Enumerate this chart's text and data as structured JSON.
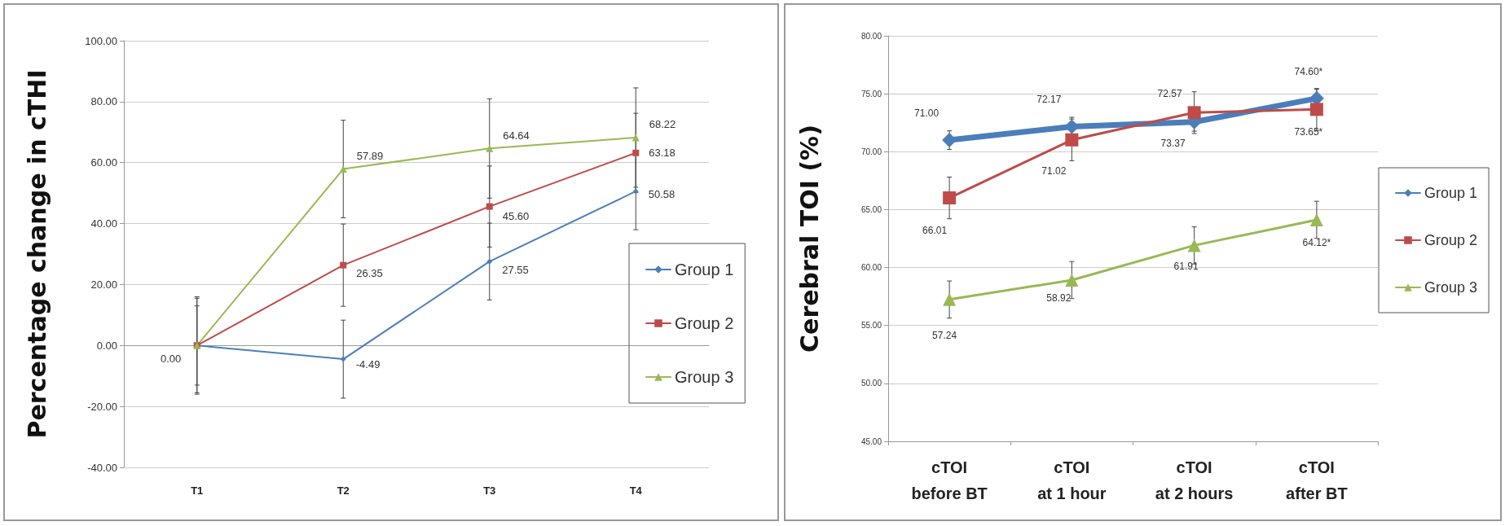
{
  "chart_data": [
    {
      "type": "line",
      "ylabel": "Percentage change in cTHI",
      "categories": [
        "T1",
        "T2",
        "T3",
        "T4"
      ],
      "series": [
        {
          "name": "Group 1",
          "color": "#4a7ebb",
          "marker": "diamond",
          "values": [
            0.0,
            -4.49,
            27.55,
            50.58
          ],
          "errors": [
            15.5,
            12.8,
            12.6,
            12.6
          ],
          "value_labels": [
            "0.00",
            "-4.49",
            "27.55",
            "50.58"
          ]
        },
        {
          "name": "Group 2",
          "color": "#be4b48",
          "marker": "square",
          "values": [
            0,
            26.35,
            45.6,
            63.18
          ],
          "errors": [
            13,
            13.5,
            13.3,
            13
          ],
          "value_labels": [
            null,
            "26.35",
            "45.60",
            "63.18"
          ]
        },
        {
          "name": "Group 3",
          "color": "#98b954",
          "marker": "triangle",
          "values": [
            0,
            57.89,
            64.64,
            68.22
          ],
          "errors": [
            16,
            16,
            16.3,
            16.3
          ],
          "value_labels": [
            null,
            "57.89",
            "64.64",
            "68.22"
          ]
        }
      ],
      "ylim": [
        -40,
        100
      ],
      "yticks": [
        {
          "value": -40,
          "label": "-40.00"
        },
        {
          "value": -20,
          "label": "-20.00"
        },
        {
          "value": 0,
          "label": "0.00"
        },
        {
          "value": 20,
          "label": "20.00"
        },
        {
          "value": 40,
          "label": "40.00"
        },
        {
          "value": 60,
          "label": "60.00"
        },
        {
          "value": 80,
          "label": "80.00"
        },
        {
          "value": 100,
          "label": "100.00"
        }
      ],
      "grid": "y",
      "legend": "right"
    },
    {
      "type": "line",
      "ylabel": "Cerebral TOI (%)",
      "categories": [
        "cTOI\nbefore BT",
        "cTOI\nat 1 hour",
        "cTOI\nat 2 hours",
        "cTOI\nafter BT"
      ],
      "series": [
        {
          "name": "Group 1",
          "color": "#4a7ebb",
          "marker": "diamond",
          "values": [
            71.0,
            72.17,
            72.57,
            74.6
          ],
          "errors": [
            0.8,
            0.8,
            0.8,
            0.8
          ],
          "value_labels": [
            "71.00",
            "72.17",
            "72.57",
            "74.60*"
          ]
        },
        {
          "name": "Group 2",
          "color": "#be4b48",
          "marker": "square",
          "values": [
            66.01,
            71.02,
            73.37,
            73.65
          ],
          "errors": [
            1.8,
            1.8,
            1.8,
            1.8
          ],
          "value_labels": [
            "66.01",
            "71.02",
            "73.37",
            "73.65*"
          ]
        },
        {
          "name": "Group 3",
          "color": "#98b954",
          "marker": "triangle",
          "values": [
            57.24,
            58.92,
            61.91,
            64.12
          ],
          "errors": [
            1.6,
            1.6,
            1.6,
            1.6
          ],
          "value_labels": [
            "57.24",
            "58.92",
            "61.91",
            "64.12*"
          ]
        }
      ],
      "ylim": [
        45,
        80
      ],
      "yticks": [
        {
          "value": 45,
          "label": "45.00"
        },
        {
          "value": 50,
          "label": "50.00"
        },
        {
          "value": 55,
          "label": "55.00"
        },
        {
          "value": 60,
          "label": "60.00"
        },
        {
          "value": 65,
          "label": "65.00"
        },
        {
          "value": 70,
          "label": "70.00"
        },
        {
          "value": 75,
          "label": "75.00"
        },
        {
          "value": 80,
          "label": "80.00"
        }
      ],
      "grid": "y",
      "legend": "right"
    }
  ]
}
